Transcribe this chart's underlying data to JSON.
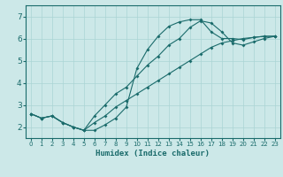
{
  "xlabel": "Humidex (Indice chaleur)",
  "background_color": "#cce8e8",
  "grid_color": "#aad4d4",
  "line_color": "#1a6b6b",
  "spine_color": "#1a6b6b",
  "xlim": [
    -0.5,
    23.5
  ],
  "ylim": [
    1.5,
    7.5
  ],
  "xticks": [
    0,
    1,
    2,
    3,
    4,
    5,
    6,
    7,
    8,
    9,
    10,
    11,
    12,
    13,
    14,
    15,
    16,
    17,
    18,
    19,
    20,
    21,
    22,
    23
  ],
  "yticks": [
    2,
    3,
    4,
    5,
    6,
    7
  ],
  "curve1_x": [
    0,
    1,
    2,
    3,
    4,
    5,
    6,
    7,
    8,
    9,
    10,
    11,
    12,
    13,
    14,
    15,
    16,
    17,
    18,
    19,
    20,
    21,
    22,
    23
  ],
  "curve1_y": [
    2.6,
    2.4,
    2.5,
    2.2,
    2.0,
    1.85,
    1.85,
    2.1,
    2.4,
    2.9,
    4.65,
    5.5,
    6.1,
    6.55,
    6.75,
    6.85,
    6.85,
    6.3,
    6.0,
    6.0,
    5.95,
    6.05,
    6.1,
    6.1
  ],
  "curve2_x": [
    0,
    1,
    2,
    3,
    4,
    5,
    6,
    7,
    8,
    9,
    10,
    11,
    12,
    13,
    14,
    15,
    16,
    17,
    18,
    19,
    20,
    21,
    22,
    23
  ],
  "curve2_y": [
    2.6,
    2.4,
    2.5,
    2.2,
    2.0,
    1.85,
    2.2,
    2.5,
    2.9,
    3.2,
    3.5,
    3.8,
    4.1,
    4.4,
    4.7,
    5.0,
    5.3,
    5.6,
    5.8,
    5.9,
    6.0,
    6.05,
    6.1,
    6.1
  ],
  "curve3_x": [
    0,
    1,
    2,
    3,
    4,
    5,
    6,
    7,
    8,
    9,
    10,
    11,
    12,
    13,
    14,
    15,
    16,
    17,
    18,
    19,
    20,
    21,
    22,
    23
  ],
  "curve3_y": [
    2.6,
    2.4,
    2.5,
    2.2,
    2.0,
    1.85,
    2.5,
    3.0,
    3.5,
    3.8,
    4.3,
    4.8,
    5.2,
    5.7,
    6.0,
    6.5,
    6.8,
    6.7,
    6.3,
    5.8,
    5.7,
    5.85,
    6.0,
    6.1
  ]
}
